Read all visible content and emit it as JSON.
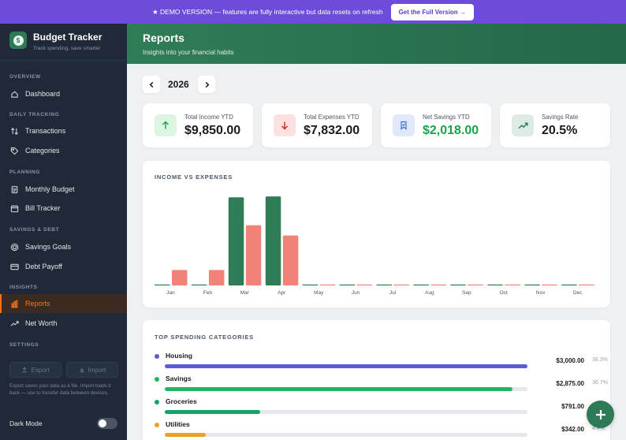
{
  "banner": {
    "text": "★ DEMO VERSION — features are fully interactive but data resets on refresh",
    "cta": "Get the Full Version →"
  },
  "brand": {
    "title": "Budget Tracker",
    "subtitle": "Track spending, save smarter",
    "logo_glyph": "$"
  },
  "sidebar": {
    "sections": {
      "overview": "OVERVIEW",
      "daily": "DAILY TRACKING",
      "planning": "PLANNING",
      "savings": "SAVINGS & DEBT",
      "insights": "INSIGHTS",
      "settings": "SETTINGS"
    },
    "items": {
      "dashboard": "Dashboard",
      "transactions": "Transactions",
      "categories": "Categories",
      "monthly_budget": "Monthly Budget",
      "bill_tracker": "Bill Tracker",
      "savings_goals": "Savings Goals",
      "debt_payoff": "Debt Payoff",
      "reports": "Reports",
      "net_worth": "Net Worth"
    },
    "export_label": "Export",
    "import_label": "Import",
    "io_note": "Export saves your data as a file. Import loads it back — use to transfer data between devices.",
    "dark_mode_label": "Dark Mode",
    "dark_mode_on": false
  },
  "header": {
    "title": "Reports",
    "subtitle": "Insights into your financial habits"
  },
  "year": "2026",
  "stats": {
    "income": {
      "label": "Total Income YTD",
      "value": "$9,850.00",
      "icon": "arrow-up-icon",
      "color": "#16a34a"
    },
    "expenses": {
      "label": "Total Expenses YTD",
      "value": "$7,832.00",
      "icon": "arrow-down-icon",
      "color": "#dc2626"
    },
    "savings": {
      "label": "Net Savings YTD",
      "value": "$2,018.00",
      "icon": "bookmark-icon",
      "color": "#16a34a"
    },
    "rate": {
      "label": "Savings Rate",
      "value": "20.5%",
      "icon": "trend-up-icon",
      "color": "#2f7a56"
    }
  },
  "chart_title": "INCOME VS EXPENSES",
  "chart_data": {
    "type": "bar",
    "categories": [
      "Jan",
      "Feb",
      "Mar",
      "Apr",
      "May",
      "Jun",
      "Jul",
      "Aug",
      "Sep",
      "Oct",
      "Nov",
      "Dec"
    ],
    "series": [
      {
        "values": [
          0,
          0,
          4900,
          4950,
          0,
          0,
          0,
          0,
          0,
          0,
          0,
          0
        ],
        "color": "#2f7d57"
      },
      {
        "values": [
          860,
          860,
          3350,
          2780,
          0,
          0,
          0,
          0,
          0,
          0,
          0,
          0
        ],
        "color": "#f0827a"
      }
    ],
    "ylim": [
      0,
      5000
    ],
    "grid": false,
    "legend": "none"
  },
  "spending": {
    "title": "TOP SPENDING CATEGORIES",
    "items": [
      {
        "name": "Housing",
        "amount": "$3,000.00",
        "pct": "38.3%",
        "share": 1.0,
        "color": "#5b5bd6"
      },
      {
        "name": "Savings",
        "amount": "$2,875.00",
        "pct": "36.7%",
        "share": 0.958,
        "color": "#22b464"
      },
      {
        "name": "Groceries",
        "amount": "$791.00",
        "pct": "10.1%",
        "share": 0.264,
        "color": "#16a36a"
      },
      {
        "name": "Utilities",
        "amount": "$342.00",
        "pct": "4.4%",
        "share": 0.114,
        "color": "#eaa320"
      }
    ]
  }
}
